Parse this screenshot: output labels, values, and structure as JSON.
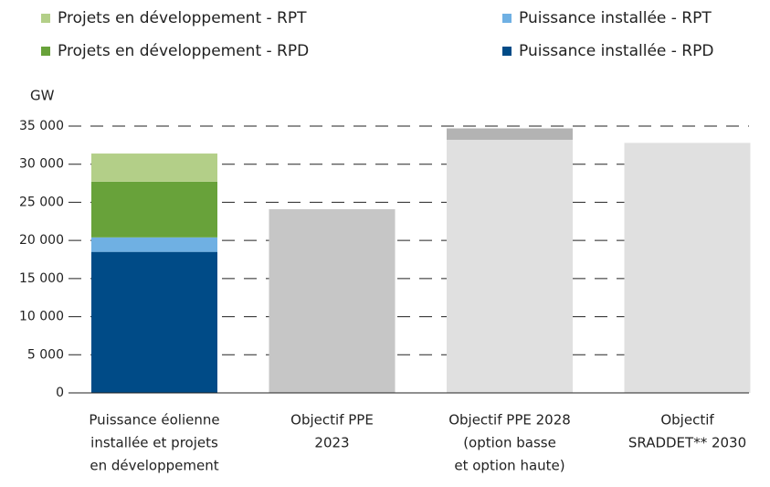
{
  "chart_data": {
    "type": "bar",
    "y_label": "GW",
    "categories": [
      [
        "Puissance éolienne",
        "installée et projets",
        "en développement"
      ],
      [
        "Objectif PPE",
        "2023"
      ],
      [
        "Objectif PPE 2028",
        "(option basse",
        "et option haute)"
      ],
      [
        "Objectif",
        "SRADDET** 2030"
      ]
    ],
    "series": [
      {
        "name": "Puissance installée - RPD",
        "color": "#004b87",
        "values": [
          18500,
          null,
          null,
          null
        ]
      },
      {
        "name": "Puissance installée - RPT",
        "color": "#6fb0e3",
        "values": [
          1900,
          null,
          null,
          null
        ]
      },
      {
        "name": "Projets en développement - RPD",
        "color": "#68a23a",
        "values": [
          7300,
          null,
          null,
          null
        ]
      },
      {
        "name": "Projets en développement - RPT",
        "color": "#b3cf88",
        "values": [
          3700,
          null,
          null,
          null
        ]
      }
    ],
    "objectives": {
      "values": [
        null,
        24100,
        33200,
        32800
      ],
      "colors": [
        null,
        "#c6c6c6",
        "#e0e0e0",
        "#e0e0e0"
      ],
      "high_values": [
        null,
        null,
        34700,
        null
      ],
      "high_color": "#b3b3b3"
    },
    "ylim": [
      0,
      35000
    ],
    "yticks": [
      0,
      {
        "value": 5000,
        "label": "5 000"
      },
      {
        "value": 10000,
        "label": "10 000"
      },
      {
        "value": 15000,
        "label": "15 000"
      },
      {
        "value": 20000,
        "label": "20 000"
      },
      {
        "value": 25000,
        "label": "25 000"
      },
      {
        "value": 30000,
        "label": "30 000"
      },
      {
        "value": 35000,
        "label": "35 000"
      }
    ],
    "grid": true
  }
}
